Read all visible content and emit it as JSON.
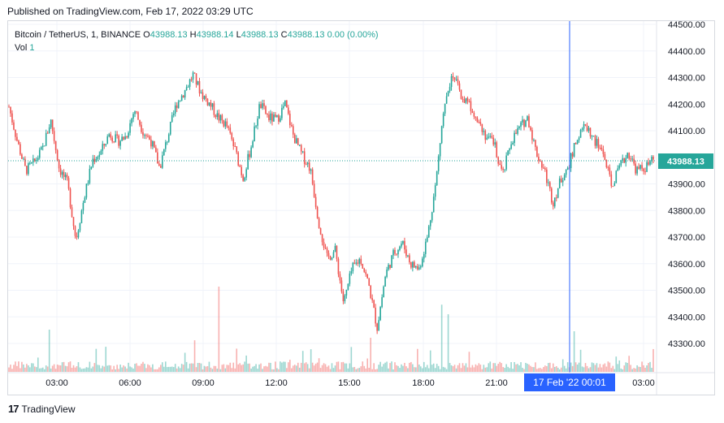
{
  "header": {
    "published": "Published on TradingView.com, Feb 17, 2022 03:29 UTC"
  },
  "legend": {
    "symbol": "Bitcoin / TetherUS, 1, BINANCE",
    "o_label": "O",
    "o_value": "43988.13",
    "h_label": "H",
    "h_value": "43988.14",
    "l_label": "L",
    "l_value": "43988.13",
    "c_label": "C",
    "c_value": "43988.13",
    "change": "0.00 (0.00%)",
    "vol_label": "Vol",
    "vol_value": "1"
  },
  "footer": {
    "logo": "17",
    "brand": "TradingView"
  },
  "colors": {
    "up": "#26a69a",
    "down": "#ef5350",
    "crosshair": "#2962ff",
    "price_tag": "#26a69a"
  },
  "chart_data": {
    "type": "candlestick",
    "symbol": "Bitcoin / TetherUS",
    "interval": "1",
    "ylim": [
      43170,
      44500
    ],
    "y_ticks": [
      "44500.00",
      "44400.00",
      "44300.00",
      "44200.00",
      "44100.00",
      "44000.00",
      "43900.00",
      "43800.00",
      "43700.00",
      "43600.00",
      "43500.00",
      "43400.00",
      "43300.00"
    ],
    "x_ticks": [
      "03:00",
      "06:00",
      "09:00",
      "12:00",
      "15:00",
      "18:00",
      "21:00",
      "03:00"
    ],
    "crosshair_time": "17 Feb '22  00:01",
    "current_price": "43988.13",
    "grid": true,
    "close_series": [
      [
        "01:40",
        44190
      ],
      [
        "02:00",
        44060
      ],
      [
        "02:20",
        43950
      ],
      [
        "02:40",
        43980
      ],
      [
        "03:00",
        44030
      ],
      [
        "03:20",
        44140
      ],
      [
        "03:40",
        43960
      ],
      [
        "04:00",
        43900
      ],
      [
        "04:20",
        43690
      ],
      [
        "04:40",
        43850
      ],
      [
        "05:00",
        43990
      ],
      [
        "05:20",
        44020
      ],
      [
        "05:40",
        44090
      ],
      [
        "06:00",
        44060
      ],
      [
        "06:20",
        44080
      ],
      [
        "06:40",
        44180
      ],
      [
        "07:00",
        44100
      ],
      [
        "07:20",
        44060
      ],
      [
        "07:40",
        43960
      ],
      [
        "08:00",
        44080
      ],
      [
        "08:20",
        44200
      ],
      [
        "08:40",
        44250
      ],
      [
        "09:00",
        44310
      ],
      [
        "09:20",
        44240
      ],
      [
        "09:40",
        44200
      ],
      [
        "10:00",
        44150
      ],
      [
        "10:20",
        44120
      ],
      [
        "10:40",
        44030
      ],
      [
        "11:00",
        43920
      ],
      [
        "11:20",
        44050
      ],
      [
        "11:40",
        44200
      ],
      [
        "12:00",
        44150
      ],
      [
        "12:20",
        44140
      ],
      [
        "12:40",
        44200
      ],
      [
        "13:00",
        44080
      ],
      [
        "13:20",
        44010
      ],
      [
        "13:40",
        43960
      ],
      [
        "14:00",
        43760
      ],
      [
        "14:20",
        43620
      ],
      [
        "14:40",
        43650
      ],
      [
        "15:00",
        43450
      ],
      [
        "15:20",
        43580
      ],
      [
        "15:40",
        43620
      ],
      [
        "16:00",
        43520
      ],
      [
        "16:20",
        43360
      ],
      [
        "16:40",
        43560
      ],
      [
        "17:00",
        43640
      ],
      [
        "17:20",
        43680
      ],
      [
        "17:40",
        43600
      ],
      [
        "18:00",
        43580
      ],
      [
        "18:20",
        43700
      ],
      [
        "18:40",
        43900
      ],
      [
        "19:00",
        44200
      ],
      [
        "19:20",
        44320
      ],
      [
        "19:40",
        44230
      ],
      [
        "20:00",
        44200
      ],
      [
        "20:20",
        44150
      ],
      [
        "20:40",
        44080
      ],
      [
        "21:00",
        44050
      ],
      [
        "21:20",
        43930
      ],
      [
        "21:40",
        44060
      ],
      [
        "22:00",
        44110
      ],
      [
        "22:20",
        44150
      ],
      [
        "22:40",
        44020
      ],
      [
        "23:00",
        43950
      ],
      [
        "23:20",
        43830
      ],
      [
        "23:40",
        43920
      ],
      [
        "00:00",
        43980
      ],
      [
        "00:20",
        44080
      ],
      [
        "00:40",
        44120
      ],
      [
        "01:00",
        44060
      ],
      [
        "01:20",
        44020
      ],
      [
        "01:40",
        43890
      ],
      [
        "02:00",
        43960
      ],
      [
        "02:20",
        44020
      ],
      [
        "02:40",
        43950
      ],
      [
        "03:00",
        43960
      ],
      [
        "03:20",
        43988.13
      ]
    ]
  }
}
